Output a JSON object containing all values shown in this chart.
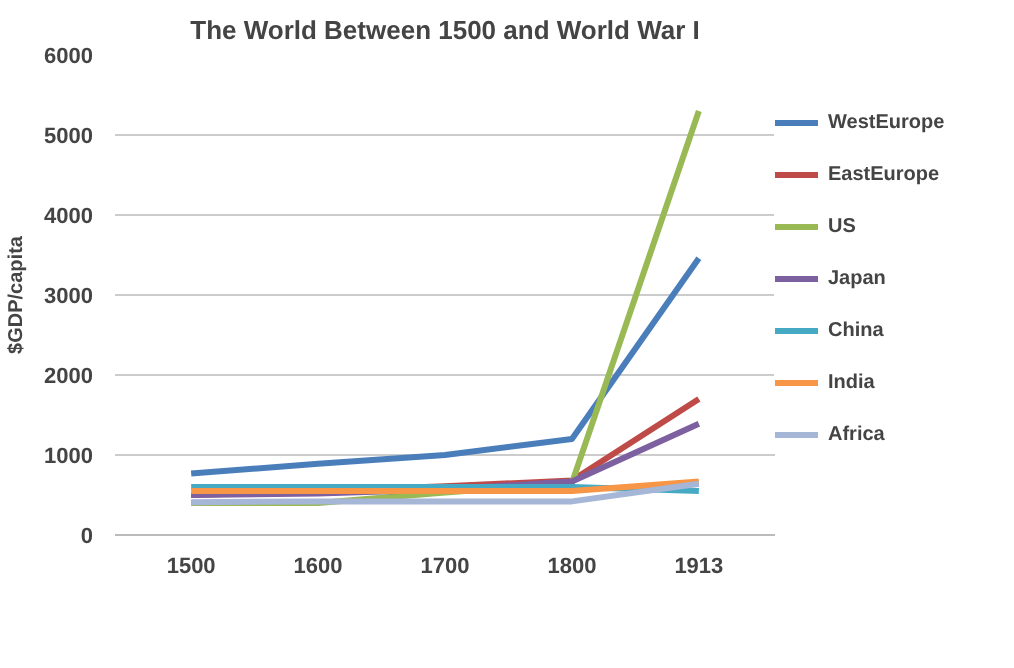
{
  "chart_data": {
    "type": "line",
    "title": "The World Between 1500 and World War I",
    "ylabel": "$GDP/capita",
    "categories": [
      "1500",
      "1600",
      "1700",
      "1800",
      "1913"
    ],
    "series": [
      {
        "name": "WestEurope",
        "color": "#4a7ebb",
        "values": [
          770,
          890,
          1000,
          1200,
          3460
        ]
      },
      {
        "name": "EastEurope",
        "color": "#be4b48",
        "values": [
          500,
          550,
          610,
          680,
          1700
        ]
      },
      {
        "name": "US",
        "color": "#98b954",
        "values": [
          400,
          400,
          530,
          650,
          5300
        ]
      },
      {
        "name": "Japan",
        "color": "#7d60a0",
        "values": [
          500,
          520,
          570,
          670,
          1390
        ]
      },
      {
        "name": "China",
        "color": "#46aac5",
        "values": [
          600,
          600,
          600,
          600,
          550
        ]
      },
      {
        "name": "India",
        "color": "#f79646",
        "values": [
          550,
          550,
          550,
          550,
          670
        ]
      },
      {
        "name": "Africa",
        "color": "#a5b6d6",
        "values": [
          410,
          420,
          420,
          420,
          640
        ]
      }
    ],
    "ylim": [
      0,
      6000
    ],
    "yticks": [
      0,
      1000,
      2000,
      3000,
      4000,
      5000,
      6000
    ],
    "grid": "y",
    "legend": "right"
  }
}
